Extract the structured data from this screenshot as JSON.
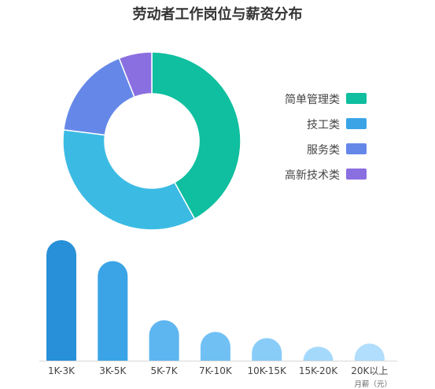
{
  "title": "劳动者工作岗位与薪资分布",
  "chart_data": [
    {
      "type": "pie",
      "variant": "donut",
      "categories": [
        "简单管理类",
        "技工类",
        "服务类",
        "高新技术类"
      ],
      "values": [
        42,
        35,
        17,
        6
      ],
      "colors": [
        "#0fbf9f",
        "#3bbbe3",
        "#6588e8",
        "#8a6fe0"
      ],
      "legend": {
        "placement": "right",
        "labels": [
          "简单管理类",
          "技工类",
          "服务类",
          "高新技术类"
        ],
        "colors": [
          "#0fbf9f",
          "#3ba4e6",
          "#6588e8",
          "#8a6fe0"
        ]
      }
    },
    {
      "type": "bar",
      "categories": [
        "1K-3K",
        "3K-5K",
        "5K-7K",
        "7K-10K",
        "10K-15K",
        "15K-20K",
        "20K以上"
      ],
      "values": [
        155,
        128,
        52,
        37,
        29,
        18,
        22
      ],
      "colors": [
        "#2890d8",
        "#3ba4e6",
        "#5db6f0",
        "#70c0f4",
        "#89ccf8",
        "#a5d9fb",
        "#b0defc"
      ],
      "ylim": [
        0,
        160
      ],
      "grid": false,
      "xlabel": "月薪（元）"
    }
  ]
}
